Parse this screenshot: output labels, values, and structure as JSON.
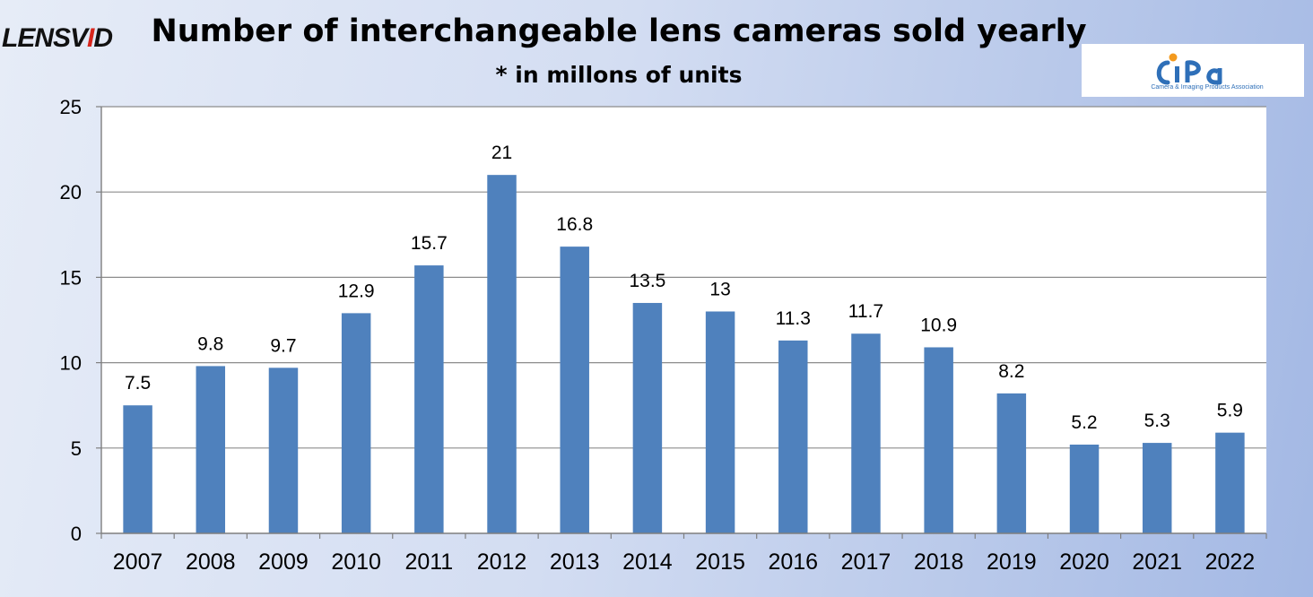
{
  "branding": {
    "lensvid_logo": "LENSVID",
    "cipa_logo": "CIPA",
    "cipa_caption": "Camera & Imaging Products Association"
  },
  "chart_data": {
    "type": "bar",
    "title": "Number of interchangeable lens cameras sold yearly",
    "subtitle": "* in millons of units",
    "xlabel": "",
    "ylabel": "",
    "categories": [
      "2007",
      "2008",
      "2009",
      "2010",
      "2011",
      "2012",
      "2013",
      "2014",
      "2015",
      "2016",
      "2017",
      "2018",
      "2019",
      "2020",
      "2021",
      "2022"
    ],
    "values": [
      7.5,
      9.8,
      9.7,
      12.9,
      15.7,
      21,
      16.8,
      13.5,
      13,
      11.3,
      11.7,
      10.9,
      8.2,
      5.2,
      5.3,
      5.9
    ],
    "ylim": [
      0,
      25
    ],
    "yticks": [
      0,
      5,
      10,
      15,
      20,
      25
    ],
    "grid": true,
    "data_labels": true,
    "bar_color": "#4f81bd"
  }
}
